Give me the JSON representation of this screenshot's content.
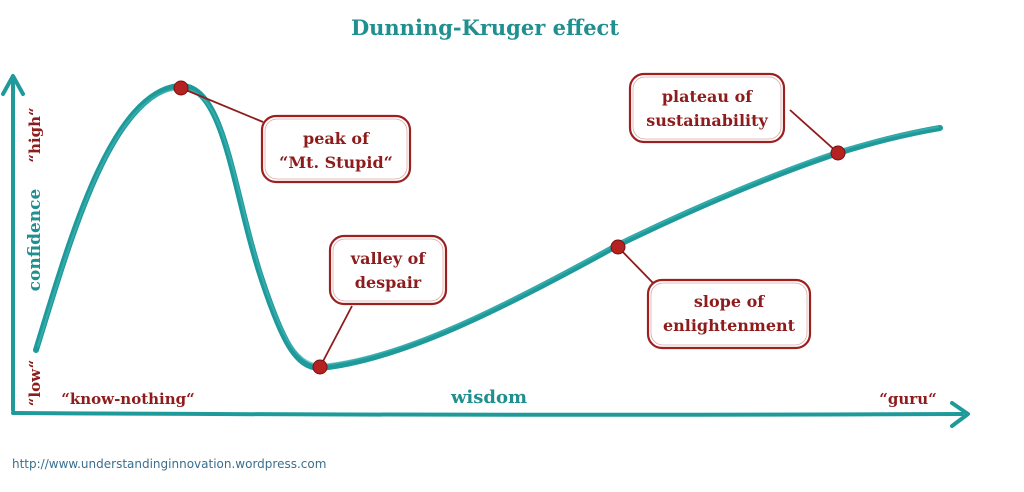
{
  "title": "Dunning-Kruger effect",
  "y_axis": {
    "label": "confidence",
    "high_label": "“high“",
    "low_label": "“low“"
  },
  "x_axis": {
    "label": "wisdom",
    "left_label": "“know-nothing“",
    "right_label": "“guru“"
  },
  "callouts": {
    "peak": {
      "line1": "peak of",
      "line2": "“Mt. Stupid“"
    },
    "valley": {
      "line1": "valley of",
      "line2": "despair"
    },
    "slope": {
      "line1": "slope of",
      "line2": "enlightenment"
    },
    "plateau": {
      "line1": "plateau of",
      "line2": "sustainability"
    }
  },
  "footer": {
    "url": "http://www.understandinginnovation.wordpress.com"
  },
  "colors": {
    "curve": "#1f9a9a",
    "axis": "#1f9a9a",
    "accent": "#8e1c1c",
    "dot": "#b42222"
  }
}
